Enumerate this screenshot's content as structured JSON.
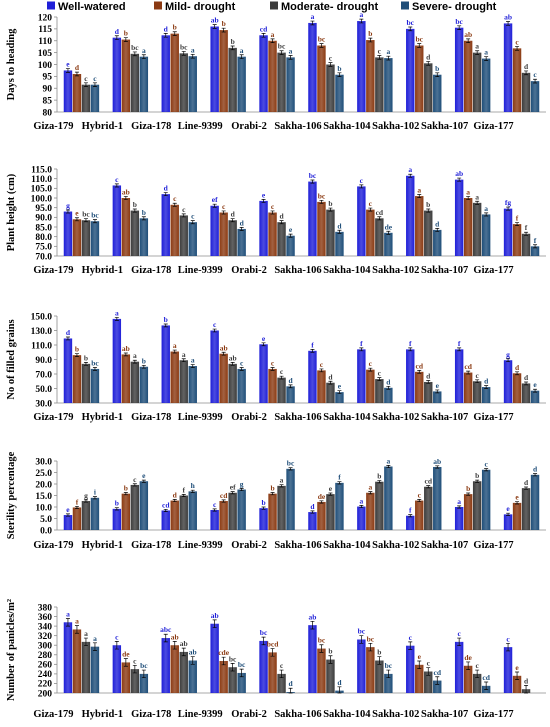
{
  "legend": {
    "position": "top",
    "items": [
      {
        "name": "Well-watered",
        "color": "#1F1FD8"
      },
      {
        "name": "Mild- drought",
        "color": "#8B3A12"
      },
      {
        "name": "Moderate- drought",
        "color": "#3C3C3C"
      },
      {
        "name": "Severe- drought",
        "color": "#1F4E79"
      }
    ]
  },
  "chart_data": [
    {
      "type": "bar",
      "grid": false,
      "ylabel": "Days to heading",
      "ylim": [
        80,
        120
      ],
      "yticks": [
        "80",
        "85",
        "90",
        "95",
        "100",
        "105",
        "110",
        "115",
        "120"
      ],
      "error_bar": 0.8,
      "categories": [
        "Giza-179",
        "Hybrid-1",
        "Giza-178",
        "Line-9399",
        "Orabi-2",
        "Sakha-106",
        "Sakha-104",
        "Sakha-102",
        "Sakha-107",
        "Giza-177"
      ],
      "series": [
        {
          "values": [
            97.5,
            111.3,
            112.3,
            116,
            112.3,
            117.5,
            118.3,
            115,
            115.5,
            117.3
          ],
          "labels": [
            "e",
            "d",
            "d",
            "ab",
            "cd",
            "a",
            "a",
            "bc",
            "bc",
            "ab"
          ]
        },
        {
          "values": [
            96,
            110.5,
            113,
            114.5,
            110,
            108,
            110.3,
            108,
            110,
            106.8
          ],
          "labels": [
            "d",
            "b",
            "b",
            "b",
            "a",
            "bc",
            "b",
            "bc",
            "ab",
            "c"
          ]
        },
        {
          "values": [
            91.5,
            104.5,
            104.7,
            107,
            105,
            100,
            103,
            100.5,
            105,
            96.5
          ],
          "labels": [
            "c",
            "bc",
            "bc",
            "b",
            "bc",
            "c",
            "c",
            "d",
            "a",
            "d"
          ]
        },
        {
          "values": [
            91.5,
            103.3,
            103.5,
            103.3,
            103,
            95.7,
            102.7,
            95.7,
            102.5,
            93
          ],
          "labels": [
            "c",
            "a",
            "a",
            "a",
            "a",
            "b",
            "a",
            "b",
            "a",
            "c"
          ]
        }
      ]
    },
    {
      "type": "bar",
      "grid": false,
      "ylabel": "Plant height (cm)",
      "ylim": [
        70,
        115
      ],
      "yticks": [
        "70.0",
        "75.0",
        "80.0",
        "85.0",
        "90.0",
        "95.0",
        "100.0",
        "105.0",
        "110.0",
        "115.0"
      ],
      "error_bar": 0.8,
      "categories": [
        "Giza-179",
        "Hybrid-1",
        "Giza-178",
        "Line-9399",
        "Orabi-2",
        "Sakha-106",
        "Sakha-104",
        "Sakha-102",
        "Sakha-107",
        "Giza-177"
      ],
      "series": [
        {
          "values": [
            93,
            106.5,
            102,
            96,
            98.5,
            108.5,
            106,
            111.5,
            109.5,
            94.5
          ],
          "labels": [
            "g",
            "c",
            "d",
            "ef",
            "e",
            "bc",
            "c",
            "a",
            "ab",
            "fg"
          ]
        },
        {
          "values": [
            89,
            100,
            96.5,
            92.5,
            92.5,
            98,
            94,
            101,
            100,
            86.5
          ],
          "labels": [
            "e",
            "ab",
            "c",
            "c",
            "c",
            "bc",
            "c",
            "a",
            "a",
            "f"
          ]
        },
        {
          "values": [
            88.5,
            93.5,
            91,
            88.5,
            87.5,
            94,
            89.5,
            93.5,
            97.5,
            81.5
          ],
          "labels": [
            "bc",
            "b",
            "c",
            "d",
            "d",
            "b",
            "cd",
            "b",
            "a",
            "f"
          ]
        },
        {
          "values": [
            88,
            89.5,
            87.5,
            84,
            80.5,
            82.5,
            82,
            83.5,
            91.5,
            75
          ],
          "labels": [
            "bc",
            "b",
            "c",
            "d",
            "e",
            "d",
            "de",
            "d",
            "a",
            "f"
          ]
        }
      ]
    },
    {
      "type": "bar",
      "grid": false,
      "ylabel": "No of filled grains",
      "ylim": [
        30,
        150
      ],
      "yticks": [
        "30.0",
        "50.0",
        "70.0",
        "90.0",
        "110.0",
        "130.0",
        "150.0"
      ],
      "error_bar": 2,
      "categories": [
        "Giza-179",
        "Hybrid-1",
        "Giza-178",
        "Line-9399",
        "Orabi-2",
        "Sakha-106",
        "Sakha-104",
        "Sakha-102",
        "Sakha-107",
        "Giza-177"
      ],
      "series": [
        {
          "values": [
            119,
            146,
            137,
            130,
            111,
            102,
            104,
            104,
            104,
            89
          ],
          "labels": [
            "d",
            "a",
            "b",
            "c",
            "e",
            "f",
            "f",
            "f",
            "f",
            "g"
          ]
        },
        {
          "values": [
            96,
            97,
            101,
            98,
            77,
            75,
            76,
            73,
            72,
            71
          ],
          "labels": [
            "b",
            "ab",
            "a",
            "ab",
            "c",
            "c",
            "c",
            "cd",
            "cd",
            "d"
          ]
        },
        {
          "values": [
            84,
            87,
            89,
            84,
            65,
            58,
            63,
            59,
            60,
            57
          ],
          "labels": [
            "b",
            "a",
            "a",
            "ab",
            "c",
            "d",
            "c",
            "d",
            "c",
            "d"
          ]
        },
        {
          "values": [
            77,
            80,
            81,
            77,
            53,
            45,
            51,
            46,
            52,
            47
          ],
          "labels": [
            "bc",
            "b",
            "a",
            "c",
            "d",
            "e",
            "d",
            "e",
            "d",
            "e"
          ]
        }
      ]
    },
    {
      "type": "bar",
      "grid": false,
      "ylabel": "Sterility percentage",
      "ylim": [
        0,
        30
      ],
      "yticks": [
        "0.0",
        "5.0",
        "10.0",
        "15.0",
        "20.0",
        "25.0",
        "30.0"
      ],
      "error_bar": 0.5,
      "categories": [
        "Giza-179",
        "Hybrid-1",
        "Giza-178",
        "Line-9399",
        "Orabi-2",
        "Sakha-106",
        "Sakha-104",
        "Sakha-102",
        "Sakha-107",
        "Giza-177"
      ],
      "series": [
        {
          "values": [
            6.5,
            9.2,
            8.5,
            8.7,
            9.5,
            7.8,
            10.2,
            6.2,
            10,
            6.8
          ],
          "labels": [
            "e",
            "b",
            "cd",
            "c",
            "b",
            "d",
            "a",
            "f",
            "a",
            "e"
          ]
        },
        {
          "values": [
            9.8,
            15.8,
            12.8,
            12.6,
            15.8,
            12.2,
            16.2,
            12.8,
            15.6,
            11.8
          ],
          "labels": [
            "f",
            "b",
            "d",
            "cd",
            "b",
            "de",
            "a",
            "c",
            "b",
            "e"
          ]
        },
        {
          "values": [
            12.6,
            19.6,
            15,
            16.2,
            19.2,
            15.6,
            21,
            18.8,
            21.2,
            18.2
          ],
          "labels": [
            "g",
            "c",
            "f",
            "ef",
            "a",
            "e",
            "b",
            "cd",
            "b",
            "d"
          ]
        },
        {
          "values": [
            14,
            21.2,
            16.8,
            17.6,
            26.6,
            20.5,
            27.6,
            27.4,
            26.2,
            24
          ],
          "labels": [
            "i",
            "e",
            "h",
            "g",
            "bc",
            "f",
            "a",
            "ab",
            "c",
            "d"
          ]
        }
      ]
    },
    {
      "type": "bar",
      "grid": false,
      "ylabel": "Number of panicles/m²",
      "ylim": [
        200,
        380
      ],
      "yticks": [
        "200",
        "220",
        "240",
        "260",
        "280",
        "300",
        "320",
        "340",
        "360",
        "380"
      ],
      "error_bar": 8,
      "categories": [
        "Giza-179",
        "Hybrid-1",
        "Giza-178",
        "Line-9399",
        "Orabi-2",
        "Sakha-106",
        "Sakha-104",
        "Sakha-102",
        "Sakha-107",
        "Giza-177"
      ],
      "series": [
        {
          "values": [
            348,
            300,
            315,
            345,
            309,
            342,
            312,
            299,
            307,
            296
          ],
          "labels": [
            "a",
            "c",
            "abc",
            "ab",
            "bc",
            "ab",
            "bc",
            "c",
            "c",
            "c"
          ]
        },
        {
          "values": [
            333,
            264,
            300,
            267,
            285,
            293,
            296,
            259,
            257,
            236
          ],
          "labels": [
            "a",
            "de",
            "ab",
            "cde",
            "bcd",
            "bc",
            "bc",
            "e",
            "de",
            "e"
          ]
        },
        {
          "values": [
            307,
            250,
            286,
            254,
            240,
            270,
            268,
            245,
            240,
            208
          ],
          "labels": [
            "a",
            "c",
            "ab",
            "bc",
            "c",
            "b",
            "b",
            "c",
            "c",
            "d"
          ]
        },
        {
          "values": [
            297,
            240,
            268,
            242,
            202,
            205,
            240,
            226,
            215,
            null
          ],
          "labels": [
            "a",
            "bc",
            "ab",
            "bc",
            "d",
            "d",
            "bc",
            "cd",
            "cd",
            null
          ]
        }
      ]
    }
  ]
}
